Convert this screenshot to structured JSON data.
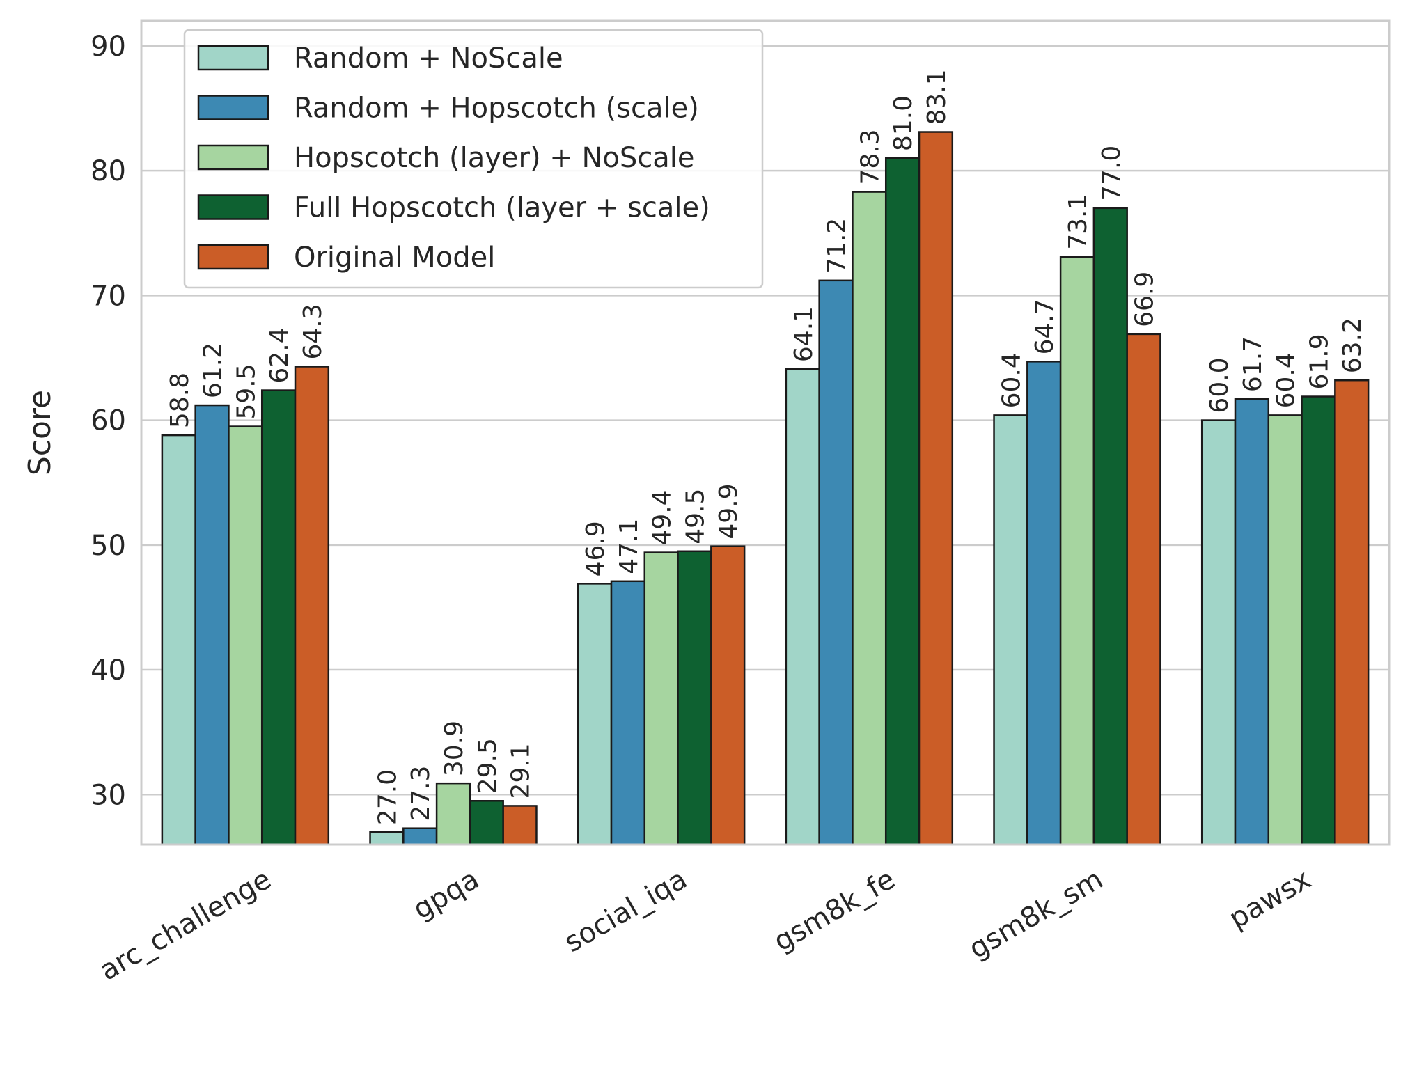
{
  "chart_data": {
    "type": "bar",
    "ylabel": "Score",
    "xlabel": "",
    "ylim": [
      26,
      92
    ],
    "yticks": [
      30,
      40,
      50,
      60,
      70,
      80,
      90
    ],
    "grid": "horizontal",
    "legend_position": "top-left",
    "categories": [
      "arc_challenge",
      "gpqa",
      "social_iqa",
      "gsm8k_fe",
      "gsm8k_sm",
      "pawsx"
    ],
    "series": [
      {
        "name": "Random + NoScale",
        "color": "#a1d5c8",
        "values": [
          58.8,
          27.0,
          46.9,
          64.1,
          60.4,
          60.0
        ]
      },
      {
        "name": "Random + Hopscotch (scale)",
        "color": "#3d89b3",
        "values": [
          61.2,
          27.3,
          47.1,
          71.2,
          64.7,
          61.7
        ]
      },
      {
        "name": "Hopscotch (layer) + NoScale",
        "color": "#a6d5a0",
        "values": [
          59.5,
          30.9,
          49.4,
          78.3,
          73.1,
          60.4
        ]
      },
      {
        "name": "Full Hopscotch (layer + scale)",
        "color": "#0e6131",
        "values": [
          62.4,
          29.5,
          49.5,
          81.0,
          77.0,
          61.9
        ]
      },
      {
        "name": "Original Model",
        "color": "#cb5d27",
        "values": [
          64.3,
          29.1,
          49.9,
          83.1,
          66.9,
          63.2
        ]
      }
    ]
  }
}
